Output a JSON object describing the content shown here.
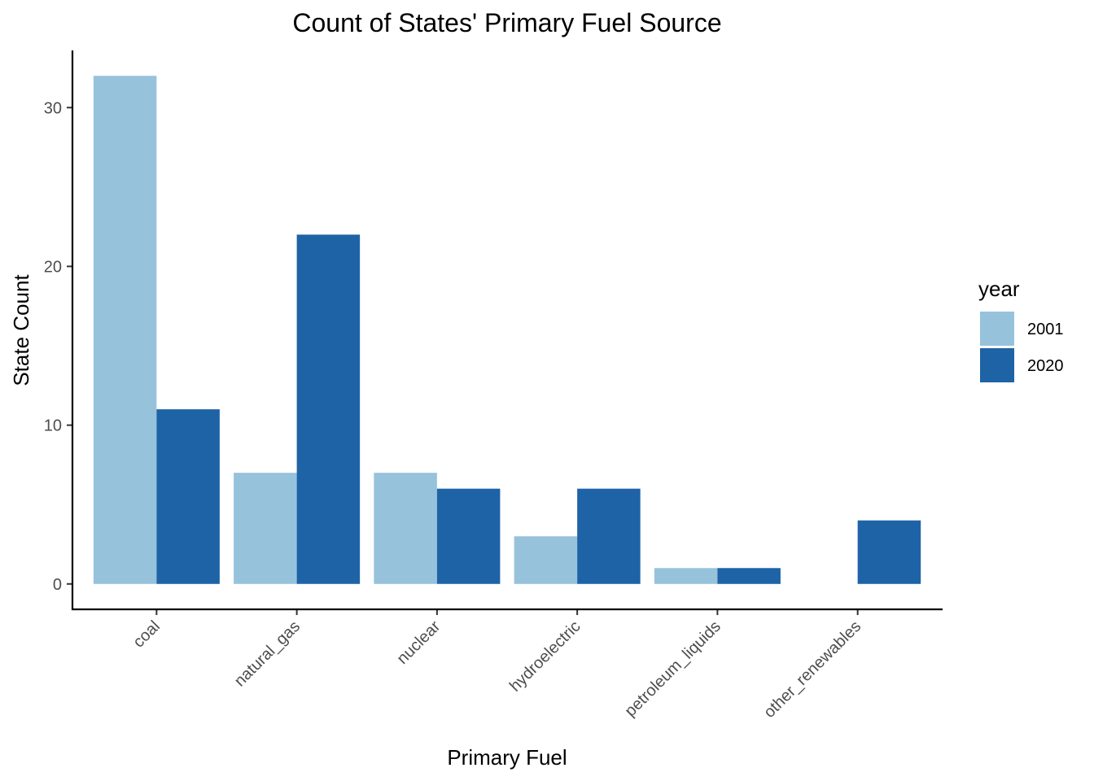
{
  "chart_data": {
    "type": "bar",
    "title": "Count of States' Primary Fuel Source",
    "xlabel": "Primary Fuel",
    "ylabel": "State Count",
    "categories": [
      "coal",
      "natural_gas",
      "nuclear",
      "hydroelectric",
      "petroleum_liquids",
      "other_renewables"
    ],
    "series": [
      {
        "name": "2001",
        "color": "#97c2dc",
        "values": [
          32,
          7,
          7,
          3,
          1,
          0
        ]
      },
      {
        "name": "2020",
        "color": "#1e63a6",
        "values": [
          11,
          22,
          6,
          6,
          1,
          4
        ]
      }
    ],
    "ylim": [
      -1.6,
      33.6
    ],
    "yticks": [
      0,
      10,
      20,
      30
    ],
    "grid": false,
    "legend": {
      "title": "year",
      "position": "right"
    }
  }
}
